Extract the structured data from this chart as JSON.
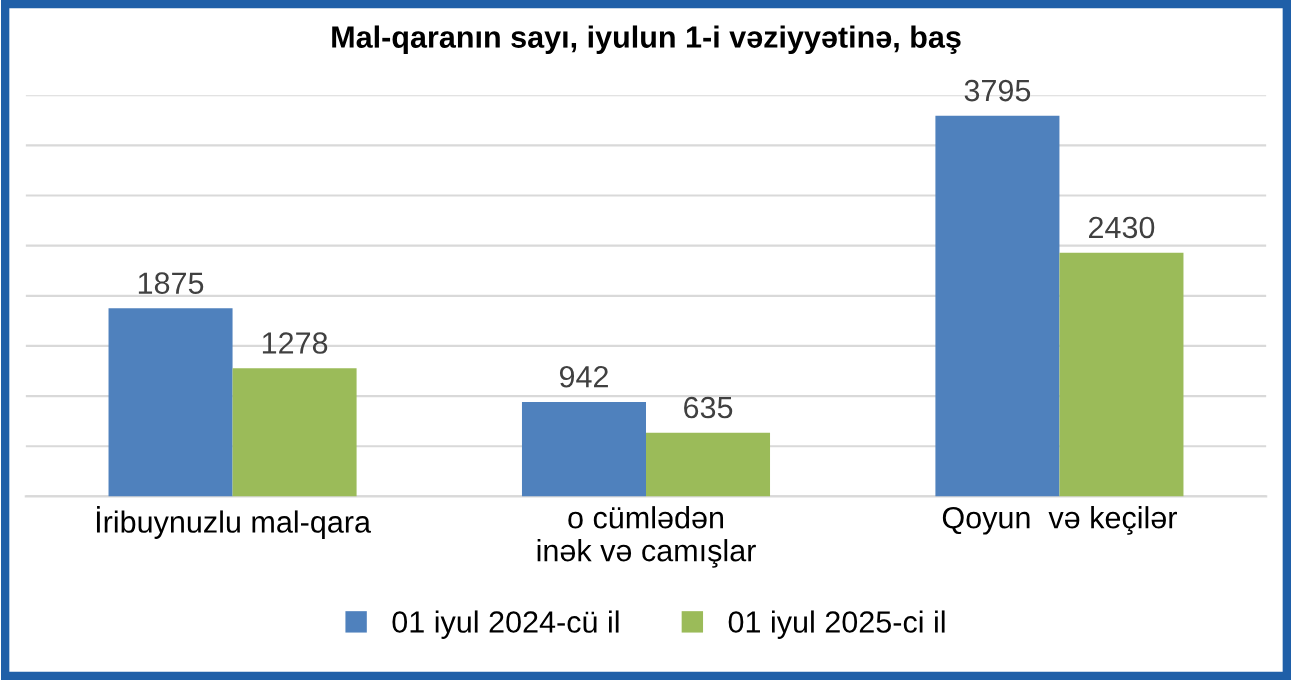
{
  "chart_data": {
    "type": "bar",
    "title": "Mal-qaranın sayı, iyulun 1-i vəziyyətinə, baş",
    "categories": [
      "İribuynuzlu mal-qara",
      "o cümlədən\ninək və camışlar",
      "Qoyun  və keçilər"
    ],
    "series": [
      {
        "name": "01 iyul 2024-cü il",
        "color": "#4f81bd",
        "values": [
          1875,
          942,
          3795
        ]
      },
      {
        "name": "01 iyul 2025-ci il",
        "color": "#9bbb59",
        "values": [
          1278,
          635,
          2430
        ]
      }
    ],
    "ylim": [
      0,
      4000
    ],
    "yticks": [
      {
        "value": 0,
        "label": null
      },
      {
        "value": 500,
        "label": null
      },
      {
        "value": 1000,
        "label": null
      },
      {
        "value": 1500,
        "label": null
      },
      {
        "value": 2000,
        "label": null
      },
      {
        "value": 2500,
        "label": null
      },
      {
        "value": 3000,
        "label": null
      },
      {
        "value": 3500,
        "label": null
      },
      {
        "value": 4000,
        "label": null
      }
    ],
    "grid": "y",
    "legend": "bottom",
    "data_labels": true
  }
}
